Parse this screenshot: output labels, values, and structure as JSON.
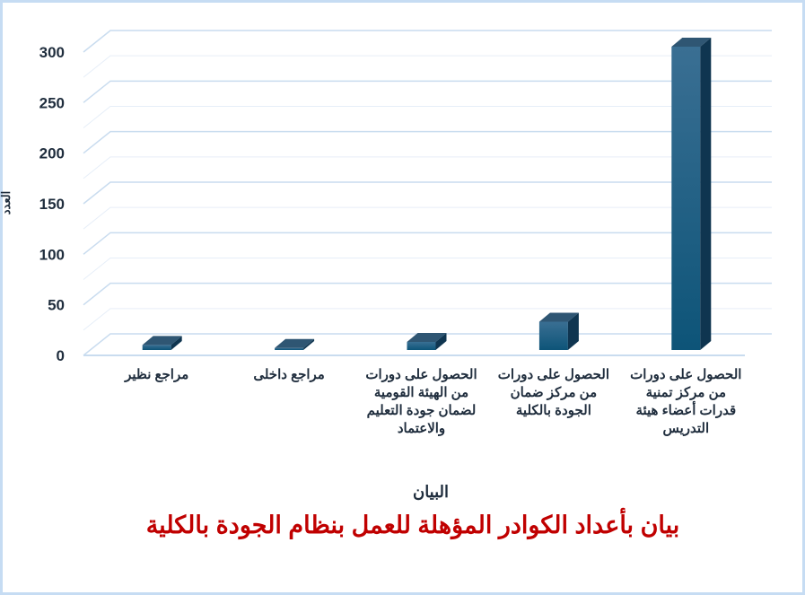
{
  "chart_data": {
    "type": "bar",
    "style": "3d-column",
    "title": "بيان بأعداد الكوادر المؤهلة للعمل بنظام الجودة بالكلية",
    "xlabel": "البيان",
    "ylabel": "العدد",
    "ylim": [
      0,
      300
    ],
    "yticks": [
      "0",
      "50",
      "100",
      "150",
      "200",
      "250",
      "300"
    ],
    "grid": true,
    "categories": [
      "مراجع نظير",
      "مراجع داخلى",
      "الحصول على دورات من الهيئة القومية لضمان جودة التعليم والاعتماد",
      "الحصول على دورات من مركز ضمان الجودة بالكلية",
      "الحصول على دورات من مركز تمنية قدرات أعضاء هيئة التدريس"
    ],
    "values": [
      5,
      2,
      8,
      28,
      300
    ],
    "colors": {
      "bar": "#1b5a7e",
      "title": "#c00000",
      "grid": "#dce8f5"
    }
  }
}
